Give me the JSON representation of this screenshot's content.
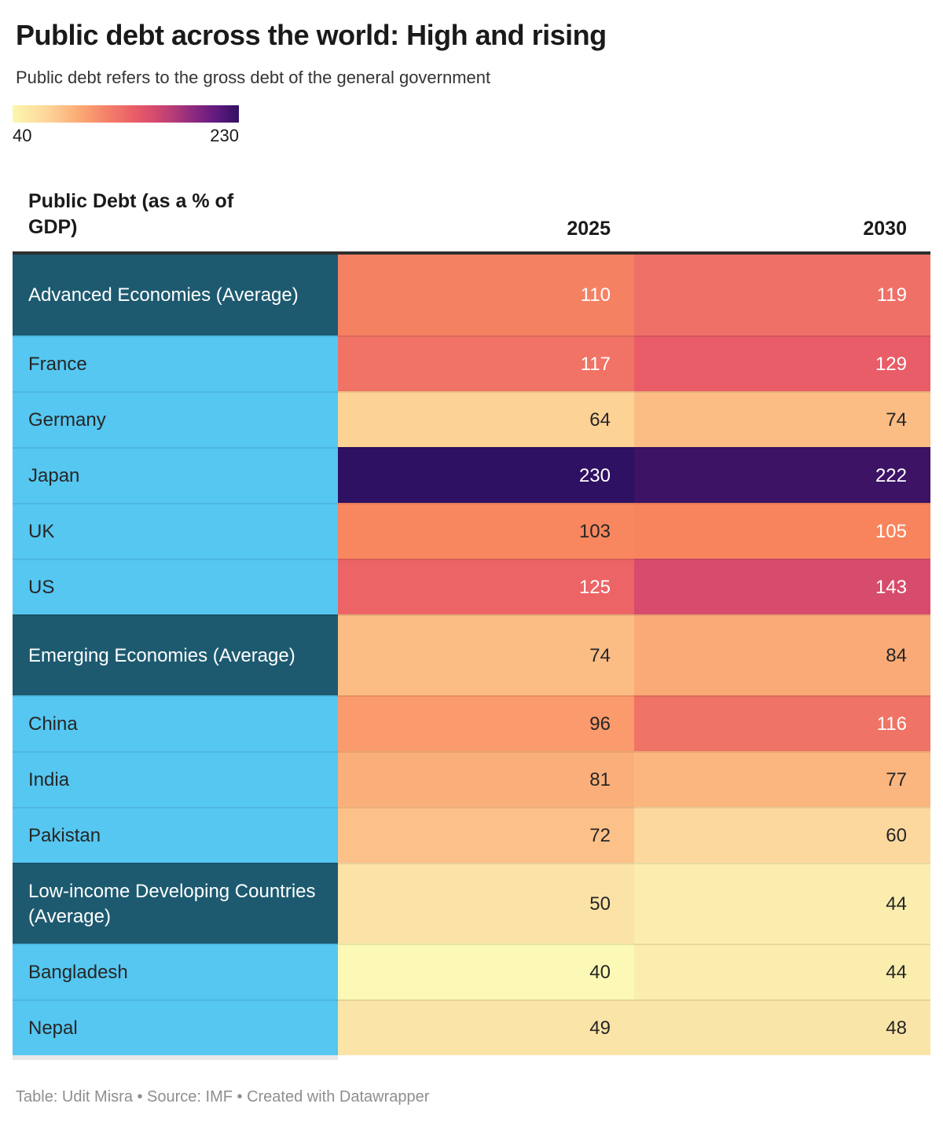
{
  "title": "Public debt across the world: High and rising",
  "subtitle": "Public debt refers to the gross debt of the general government",
  "legend": {
    "min_label": "40",
    "max_label": "230",
    "stops": [
      "#FCF7AE 0%",
      "#FDD69B 15%",
      "#FBA873 30%",
      "#F37D6A 43%",
      "#EA5F68 53%",
      "#D84C6C 62%",
      "#B13A78 72%",
      "#8C2981 80%",
      "#611A80 90%",
      "#321162 100%"
    ]
  },
  "colors": {
    "group_bg": "#1D5A70",
    "group_fg": "#FFFFFF",
    "country_bg": "#55C7F1",
    "country_fg": "#262626"
  },
  "table": {
    "header": {
      "label": "Public Debt (as a % of GDP)",
      "col_2025": "2025",
      "col_2030": "2030"
    },
    "rows": [
      {
        "label": "Advanced Economies (Average)",
        "kind": "group",
        "v2025": "110",
        "v2030": "119",
        "c2025": "#F58163",
        "c2030": "#EF7067",
        "f2025": "#FFFFFF",
        "f2030": "#FFFFFF"
      },
      {
        "label": "France",
        "kind": "country",
        "v2025": "117",
        "v2030": "129",
        "c2025": "#F07365",
        "c2030": "#E85D67",
        "f2025": "#FFFFFF",
        "f2030": "#FFFFFF"
      },
      {
        "label": "Germany",
        "kind": "country",
        "v2025": "64",
        "v2030": "74",
        "c2025": "#FDD295",
        "c2030": "#FBBD84",
        "f2025": "#262626",
        "f2030": "#262626"
      },
      {
        "label": "Japan",
        "kind": "country",
        "v2025": "230",
        "v2030": "222",
        "c2025": "#2F1163",
        "c2030": "#3C1365",
        "f2025": "#FFFFFF",
        "f2030": "#FFFFFF"
      },
      {
        "label": "UK",
        "kind": "country",
        "v2025": "103",
        "v2030": "105",
        "c2025": "#F8875F",
        "c2030": "#F8845E",
        "f2025": "#262626",
        "f2030": "#FFFFFF"
      },
      {
        "label": "US",
        "kind": "country",
        "v2025": "125",
        "v2030": "143",
        "c2025": "#EC6466",
        "c2030": "#D74C6C",
        "f2025": "#FFFFFF",
        "f2030": "#FFFFFF"
      },
      {
        "label": "Emerging Economies (Average)",
        "kind": "group",
        "v2025": "74",
        "v2030": "84",
        "c2025": "#FBBD84",
        "c2030": "#FAAA76",
        "f2025": "#262626",
        "f2030": "#262626"
      },
      {
        "label": "China",
        "kind": "country",
        "v2025": "96",
        "v2030": "116",
        "c2025": "#FB9A6C",
        "c2030": "#F07465",
        "f2025": "#262626",
        "f2030": "#FFFFFF"
      },
      {
        "label": "India",
        "kind": "country",
        "v2025": "81",
        "v2030": "77",
        "c2025": "#FAAF7A",
        "c2030": "#FBB680",
        "f2025": "#262626",
        "f2030": "#262626"
      },
      {
        "label": "Pakistan",
        "kind": "country",
        "v2025": "72",
        "v2030": "60",
        "c2025": "#FCC189",
        "c2030": "#FDD89E",
        "f2025": "#262626",
        "f2030": "#262626"
      },
      {
        "label": "Low-income Developing Countries (Average)",
        "kind": "group",
        "v2025": "50",
        "v2030": "44",
        "c2025": "#FBE3A7",
        "c2030": "#FAEDAE",
        "f2025": "#262626",
        "f2030": "#262626"
      },
      {
        "label": "Bangladesh",
        "kind": "country",
        "v2025": "40",
        "v2030": "44",
        "c2025": "#FBF9B5",
        "c2030": "#FAEDAE",
        "f2025": "#262626",
        "f2030": "#262626"
      },
      {
        "label": "Nepal",
        "kind": "country",
        "v2025": "49",
        "v2030": "48",
        "c2025": "#FBE4A8",
        "c2030": "#FAE5A9",
        "f2025": "#262626",
        "f2030": "#262626"
      }
    ]
  },
  "footer": "Table: Udit Misra • Source: IMF • Created with Datawrapper",
  "chart_data": {
    "type": "heatmap",
    "title": "Public debt across the world: High and rising",
    "subtitle": "Public debt refers to the gross debt of the general government",
    "value_label": "Public Debt (as a % of GDP)",
    "categories": [
      "Advanced Economies (Average)",
      "France",
      "Germany",
      "Japan",
      "UK",
      "US",
      "Emerging Economies (Average)",
      "China",
      "India",
      "Pakistan",
      "Low-income Developing Countries (Average)",
      "Bangladesh",
      "Nepal"
    ],
    "columns": [
      "2025",
      "2030"
    ],
    "series": [
      {
        "name": "2025",
        "values": [
          110,
          117,
          64,
          230,
          103,
          125,
          74,
          96,
          81,
          72,
          50,
          40,
          49
        ]
      },
      {
        "name": "2030",
        "values": [
          119,
          129,
          74,
          222,
          105,
          143,
          84,
          116,
          77,
          60,
          44,
          44,
          48
        ]
      }
    ],
    "color_scale": {
      "min": 40,
      "max": 230,
      "min_color": "#FCF7AE",
      "max_color": "#321162"
    },
    "legend_position": "top-left",
    "grid": false,
    "source": "IMF",
    "credit": "Table: Udit Misra",
    "tool": "Datawrapper"
  }
}
